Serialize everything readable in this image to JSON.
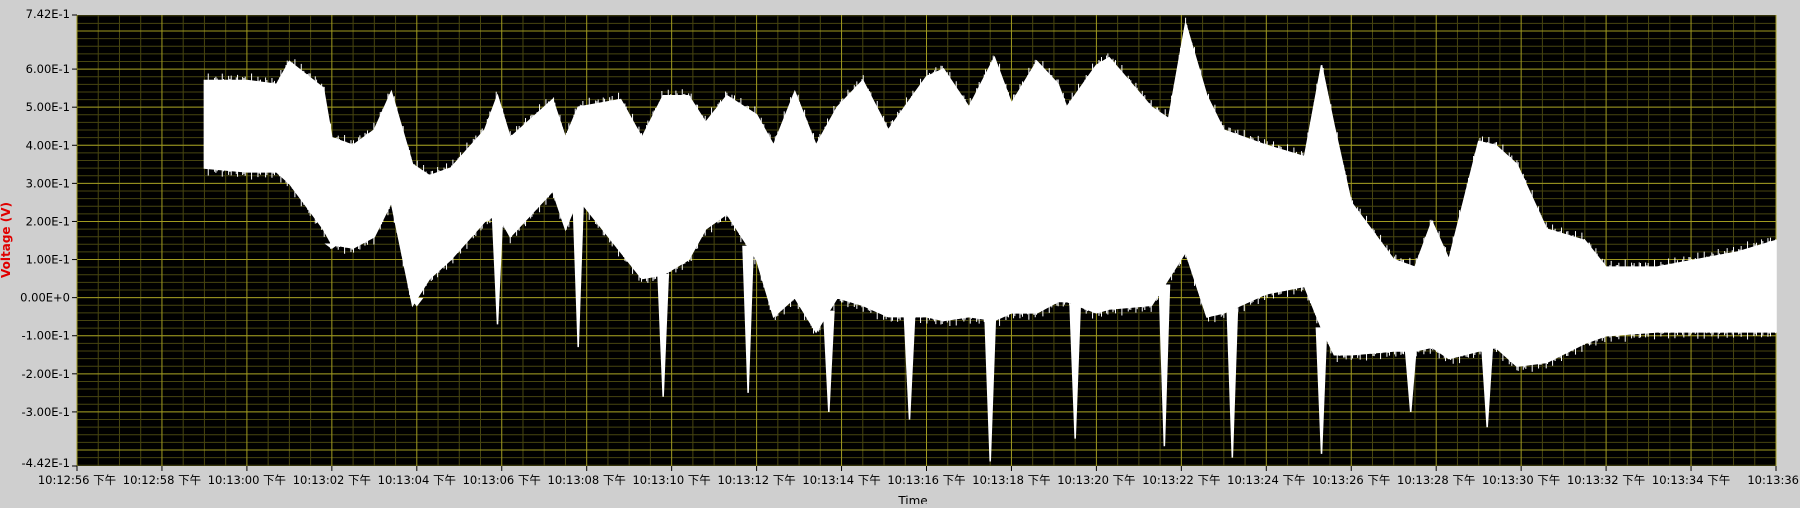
{
  "colors": {
    "frame_bg": "#cfcfcf",
    "plot_bg": "#000000",
    "grid_major": "#a09a20",
    "grid_minor": "#474510",
    "trace": "#ffffff",
    "axis_label": "#e00000"
  },
  "chart_data": {
    "type": "area",
    "title": "",
    "xlabel": "Time",
    "ylabel": "Voltage (V)",
    "grid": true,
    "xlim": [
      "10:12:56",
      "10:13:36"
    ],
    "ylim": [
      -0.442,
      0.742
    ],
    "x_ticks": [
      "10:12:56 下午",
      "10:12:58 下午",
      "10:13:00 下午",
      "10:13:02 下午",
      "10:13:04 下午",
      "10:13:06 下午",
      "10:13:08 下午",
      "10:13:10 下午",
      "10:13:12 下午",
      "10:13:14 下午",
      "10:13:16 下午",
      "10:13:18 下午",
      "10:13:20 下午",
      "10:13:22 下午",
      "10:13:24 下午",
      "10:13:26 下午",
      "10:13:28 下午",
      "10:13:30 下午",
      "10:13:32 下午",
      "10:13:34 下午",
      "10:13:36"
    ],
    "y_ticks": [
      "7.42E-1",
      "6.00E-1",
      "5.00E-1",
      "4.00E-1",
      "3.00E-1",
      "2.00E-1",
      "1.00E-1",
      "0.00E+0",
      "-1.00E-1",
      "-2.00E-1",
      "-3.00E-1",
      "-4.42E-1"
    ],
    "y_tick_values": [
      0.742,
      0.6,
      0.5,
      0.4,
      0.3,
      0.2,
      0.1,
      0.0,
      -0.1,
      -0.2,
      -0.3,
      -0.442
    ],
    "series": [
      {
        "x_seconds_from_start": [
          3.0,
          4.0,
          4.7,
          5.0,
          5.8,
          6.0,
          6.5,
          7.0,
          7.4,
          7.9,
          8.3,
          8.8,
          9.6,
          9.9,
          10.2,
          11.2,
          11.5,
          11.8,
          12.8,
          13.3,
          13.8,
          14.4,
          14.8,
          15.3,
          16.0,
          16.4,
          16.9,
          17.4,
          17.9,
          18.5,
          19.1,
          20.0,
          20.4,
          21.0,
          21.6,
          22.0,
          22.6,
          23.1,
          23.3,
          24.0,
          24.3,
          25.3,
          25.7,
          26.1,
          26.6,
          27.0,
          28.0,
          28.9,
          29.3,
          29.6,
          30.0,
          31.0,
          31.5,
          31.9,
          32.3,
          33.0,
          33.4,
          33.9,
          34.6,
          35.5,
          36.0,
          37.2,
          39.1,
          40.0
        ],
        "upper": [
          0.57,
          0.57,
          0.56,
          0.62,
          0.55,
          0.42,
          0.4,
          0.44,
          0.54,
          0.35,
          0.32,
          0.34,
          0.44,
          0.53,
          0.42,
          0.52,
          0.42,
          0.5,
          0.52,
          0.42,
          0.53,
          0.53,
          0.46,
          0.53,
          0.48,
          0.4,
          0.54,
          0.4,
          0.5,
          0.57,
          0.44,
          0.58,
          0.6,
          0.5,
          0.63,
          0.51,
          0.62,
          0.56,
          0.5,
          0.61,
          0.63,
          0.5,
          0.47,
          0.72,
          0.53,
          0.44,
          0.4,
          0.37,
          0.61,
          0.45,
          0.25,
          0.1,
          0.08,
          0.2,
          0.1,
          0.41,
          0.4,
          0.35,
          0.18,
          0.15,
          0.08,
          0.08,
          0.12,
          0.15
        ],
        "lower": [
          0.34,
          0.33,
          0.33,
          0.3,
          0.18,
          0.14,
          0.13,
          0.16,
          0.25,
          -0.02,
          0.05,
          0.1,
          0.2,
          0.22,
          0.16,
          0.28,
          0.18,
          0.26,
          0.12,
          0.05,
          0.06,
          0.1,
          0.18,
          0.22,
          0.1,
          -0.05,
          0.0,
          -0.09,
          0.0,
          -0.02,
          -0.05,
          -0.05,
          -0.06,
          -0.05,
          -0.06,
          -0.04,
          -0.04,
          -0.01,
          -0.01,
          -0.04,
          -0.03,
          -0.02,
          0.05,
          0.12,
          -0.05,
          -0.04,
          0.01,
          0.03,
          -0.08,
          -0.15,
          -0.15,
          -0.14,
          -0.14,
          -0.13,
          -0.16,
          -0.14,
          -0.13,
          -0.18,
          -0.17,
          -0.12,
          -0.1,
          -0.09,
          -0.09,
          -0.09
        ],
        "spike_seconds_from_start": [
          6.0,
          8.0,
          9.9,
          11.8,
          13.8,
          15.8,
          17.7,
          19.6,
          21.5,
          23.5,
          25.6,
          27.2,
          29.3,
          31.4,
          33.2
        ],
        "spike_min": [
          0.13,
          -0.02,
          -0.07,
          -0.13,
          -0.26,
          -0.25,
          -0.3,
          -0.32,
          -0.43,
          -0.37,
          -0.39,
          -0.42,
          -0.41,
          -0.3,
          -0.34
        ]
      }
    ]
  }
}
